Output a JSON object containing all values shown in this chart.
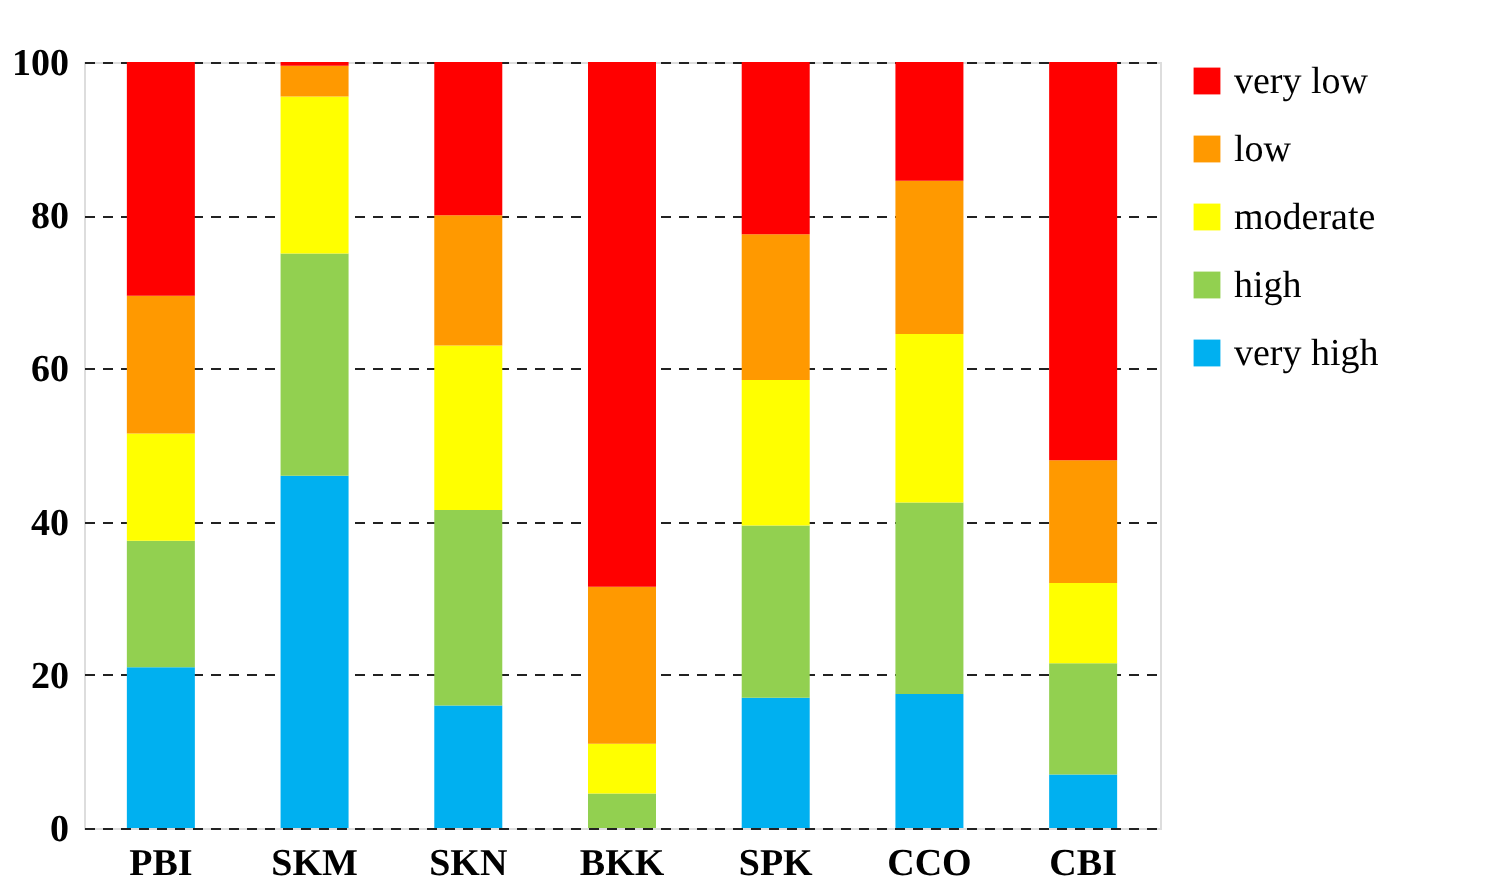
{
  "chart_data": {
    "type": "bar",
    "stacked": true,
    "categories": [
      "PBI",
      "SKM",
      "SKN",
      "BKK",
      "SPK",
      "CCO",
      "CBI"
    ],
    "series": [
      {
        "name": "very high",
        "color": "#00b0f0",
        "values": [
          21,
          46,
          16,
          0,
          17,
          17.5,
          7
        ]
      },
      {
        "name": "high",
        "color": "#92d050",
        "values": [
          16.5,
          29,
          25.5,
          4.5,
          22.5,
          25,
          14.5
        ]
      },
      {
        "name": "moderate",
        "color": "#ffff00",
        "values": [
          14,
          20.5,
          21.5,
          6.5,
          19,
          22,
          10.5
        ]
      },
      {
        "name": "low",
        "color": "#ff9900",
        "values": [
          18,
          4,
          17,
          20.5,
          19,
          20,
          16
        ]
      },
      {
        "name": "very low",
        "color": "#ff0000",
        "values": [
          30.5,
          0.5,
          20,
          68.5,
          22.5,
          15.5,
          52
        ]
      }
    ],
    "ylim": [
      0,
      100
    ],
    "yticks": [
      0,
      20,
      40,
      60,
      80,
      100
    ],
    "grid": "y",
    "legend": "right"
  }
}
